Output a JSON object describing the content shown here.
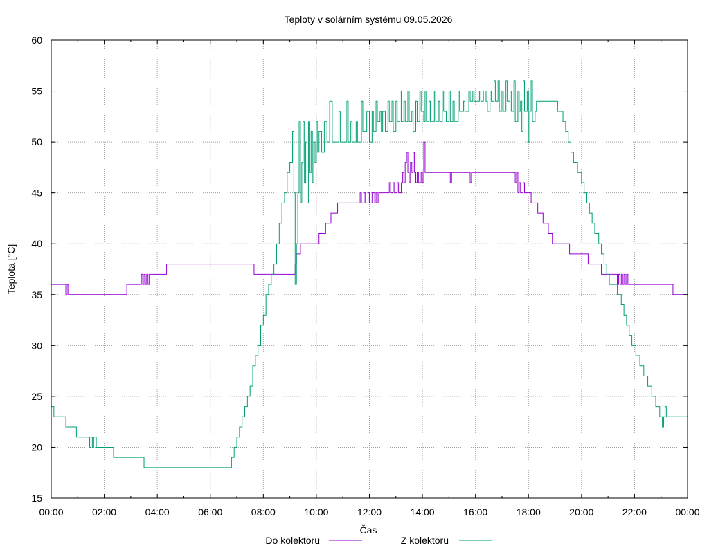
{
  "chart_data": {
    "type": "line",
    "title": "Teploty v solárním systému 09.05.2026",
    "xlabel": "Čas",
    "ylabel": "Teplota [°C]",
    "xlim_hours": [
      0,
      24
    ],
    "ylim": [
      15,
      60
    ],
    "grid": true,
    "legend_position": "bottom-center",
    "x_tick_labels": [
      "00:00",
      "02:00",
      "04:00",
      "06:00",
      "08:00",
      "10:00",
      "12:00",
      "14:00",
      "16:00",
      "18:00",
      "20:00",
      "22:00",
      "00:00"
    ],
    "y_ticks": [
      15,
      20,
      25,
      30,
      35,
      40,
      45,
      50,
      55,
      60
    ],
    "series": [
      {
        "name": "Do kolektoru",
        "color": "#9400d3",
        "points": [
          [
            0.0,
            36
          ],
          [
            0.5,
            36
          ],
          [
            0.55,
            35
          ],
          [
            0.6,
            36
          ],
          [
            0.65,
            35
          ],
          [
            2.85,
            35
          ],
          [
            2.85,
            36
          ],
          [
            3.35,
            36
          ],
          [
            3.4,
            37
          ],
          [
            3.45,
            36
          ],
          [
            3.5,
            37
          ],
          [
            3.55,
            36
          ],
          [
            3.6,
            37
          ],
          [
            3.65,
            36
          ],
          [
            3.7,
            37
          ],
          [
            4.35,
            37
          ],
          [
            4.35,
            38
          ],
          [
            7.6,
            38
          ],
          [
            7.65,
            37
          ],
          [
            9.15,
            37
          ],
          [
            9.2,
            38
          ],
          [
            9.25,
            39
          ],
          [
            9.35,
            39
          ],
          [
            9.4,
            40
          ],
          [
            10.1,
            40
          ],
          [
            10.1,
            41
          ],
          [
            10.35,
            41
          ],
          [
            10.35,
            42
          ],
          [
            10.55,
            42
          ],
          [
            10.55,
            43
          ],
          [
            10.8,
            43
          ],
          [
            10.8,
            44
          ],
          [
            11.6,
            44
          ],
          [
            11.65,
            45
          ],
          [
            11.7,
            44
          ],
          [
            11.8,
            45
          ],
          [
            11.85,
            44
          ],
          [
            11.95,
            45
          ],
          [
            12.0,
            44
          ],
          [
            12.1,
            45
          ],
          [
            12.2,
            44
          ],
          [
            12.25,
            45
          ],
          [
            12.3,
            44
          ],
          [
            12.35,
            45
          ],
          [
            12.7,
            45
          ],
          [
            12.75,
            46
          ],
          [
            12.8,
            45
          ],
          [
            12.9,
            46
          ],
          [
            12.95,
            45
          ],
          [
            13.05,
            46
          ],
          [
            13.1,
            45
          ],
          [
            13.2,
            46
          ],
          [
            13.25,
            47
          ],
          [
            13.3,
            46
          ],
          [
            13.35,
            48
          ],
          [
            13.4,
            49
          ],
          [
            13.45,
            47
          ],
          [
            13.5,
            46
          ],
          [
            13.55,
            48
          ],
          [
            13.6,
            47
          ],
          [
            13.65,
            49
          ],
          [
            13.7,
            47
          ],
          [
            13.75,
            46
          ],
          [
            13.8,
            47
          ],
          [
            13.85,
            46
          ],
          [
            13.95,
            47
          ],
          [
            14.0,
            46
          ],
          [
            14.05,
            50
          ],
          [
            14.1,
            47
          ],
          [
            15.0,
            47
          ],
          [
            15.05,
            46
          ],
          [
            15.1,
            47
          ],
          [
            15.75,
            47
          ],
          [
            15.8,
            46
          ],
          [
            15.85,
            47
          ],
          [
            17.45,
            47
          ],
          [
            17.5,
            46
          ],
          [
            17.55,
            47
          ],
          [
            17.6,
            45
          ],
          [
            17.65,
            46
          ],
          [
            17.7,
            45
          ],
          [
            17.8,
            46
          ],
          [
            17.85,
            45
          ],
          [
            18.05,
            45
          ],
          [
            18.1,
            44
          ],
          [
            18.3,
            44
          ],
          [
            18.35,
            43
          ],
          [
            18.5,
            43
          ],
          [
            18.55,
            42
          ],
          [
            18.7,
            42
          ],
          [
            18.75,
            41
          ],
          [
            18.85,
            41
          ],
          [
            18.9,
            40
          ],
          [
            19.5,
            40
          ],
          [
            19.55,
            39
          ],
          [
            20.2,
            39
          ],
          [
            20.25,
            38
          ],
          [
            20.7,
            38
          ],
          [
            20.75,
            37
          ],
          [
            21.3,
            37
          ],
          [
            21.35,
            36
          ],
          [
            21.4,
            37
          ],
          [
            21.45,
            36
          ],
          [
            21.5,
            37
          ],
          [
            21.55,
            36
          ],
          [
            21.6,
            37
          ],
          [
            21.65,
            36
          ],
          [
            21.7,
            37
          ],
          [
            21.75,
            36
          ],
          [
            23.4,
            36
          ],
          [
            23.45,
            35
          ],
          [
            24.0,
            35
          ]
        ]
      },
      {
        "name": "Z kolektoru",
        "color": "#009e73",
        "points": [
          [
            0.0,
            24
          ],
          [
            0.1,
            23
          ],
          [
            0.5,
            23
          ],
          [
            0.55,
            22
          ],
          [
            0.9,
            22
          ],
          [
            0.95,
            21
          ],
          [
            1.4,
            21
          ],
          [
            1.45,
            20
          ],
          [
            1.5,
            21
          ],
          [
            1.55,
            20
          ],
          [
            1.6,
            21
          ],
          [
            1.7,
            20
          ],
          [
            2.35,
            20
          ],
          [
            2.35,
            19
          ],
          [
            3.45,
            19
          ],
          [
            3.5,
            18
          ],
          [
            6.75,
            18
          ],
          [
            6.8,
            19
          ],
          [
            6.9,
            20
          ],
          [
            7.0,
            21
          ],
          [
            7.1,
            22
          ],
          [
            7.2,
            23
          ],
          [
            7.3,
            24
          ],
          [
            7.4,
            25
          ],
          [
            7.5,
            26
          ],
          [
            7.6,
            28
          ],
          [
            7.7,
            29
          ],
          [
            7.8,
            30
          ],
          [
            7.9,
            32
          ],
          [
            8.0,
            33
          ],
          [
            8.1,
            35
          ],
          [
            8.2,
            36
          ],
          [
            8.3,
            37
          ],
          [
            8.4,
            38
          ],
          [
            8.5,
            40
          ],
          [
            8.6,
            42
          ],
          [
            8.7,
            44
          ],
          [
            8.8,
            45
          ],
          [
            8.9,
            47
          ],
          [
            9.0,
            48
          ],
          [
            9.1,
            51
          ],
          [
            9.15,
            45
          ],
          [
            9.2,
            36
          ],
          [
            9.25,
            40
          ],
          [
            9.3,
            45
          ],
          [
            9.35,
            52
          ],
          [
            9.4,
            44
          ],
          [
            9.45,
            48
          ],
          [
            9.5,
            52
          ],
          [
            9.55,
            46
          ],
          [
            9.6,
            50
          ],
          [
            9.65,
            44
          ],
          [
            9.7,
            52
          ],
          [
            9.75,
            47
          ],
          [
            9.8,
            51
          ],
          [
            9.85,
            46
          ],
          [
            9.9,
            50
          ],
          [
            9.95,
            48
          ],
          [
            10.0,
            52
          ],
          [
            10.05,
            49
          ],
          [
            10.1,
            51
          ],
          [
            10.2,
            49
          ],
          [
            10.3,
            52
          ],
          [
            10.4,
            50
          ],
          [
            10.5,
            54
          ],
          [
            10.6,
            50
          ],
          [
            10.8,
            50
          ],
          [
            10.85,
            53
          ],
          [
            10.9,
            50
          ],
          [
            11.1,
            50
          ],
          [
            11.15,
            54
          ],
          [
            11.2,
            50
          ],
          [
            11.3,
            52
          ],
          [
            11.35,
            50
          ],
          [
            11.5,
            52
          ],
          [
            11.55,
            50
          ],
          [
            11.7,
            54
          ],
          [
            11.75,
            51
          ],
          [
            11.9,
            53
          ],
          [
            12.0,
            50
          ],
          [
            12.1,
            53
          ],
          [
            12.15,
            51
          ],
          [
            12.25,
            54
          ],
          [
            12.3,
            52
          ],
          [
            12.4,
            53
          ],
          [
            12.45,
            51
          ],
          [
            12.5,
            53
          ],
          [
            12.6,
            51
          ],
          [
            12.7,
            54
          ],
          [
            12.75,
            52
          ],
          [
            12.85,
            54
          ],
          [
            12.9,
            51
          ],
          [
            13.0,
            54
          ],
          [
            13.05,
            52
          ],
          [
            13.15,
            55
          ],
          [
            13.2,
            52
          ],
          [
            13.3,
            54
          ],
          [
            13.35,
            52
          ],
          [
            13.45,
            55
          ],
          [
            13.5,
            52
          ],
          [
            13.6,
            53
          ],
          [
            13.65,
            51
          ],
          [
            13.75,
            54
          ],
          [
            13.8,
            52
          ],
          [
            13.9,
            55
          ],
          [
            13.95,
            53
          ],
          [
            14.05,
            52
          ],
          [
            14.1,
            55
          ],
          [
            14.15,
            52
          ],
          [
            14.25,
            54
          ],
          [
            14.3,
            52
          ],
          [
            14.45,
            55
          ],
          [
            14.5,
            52
          ],
          [
            14.6,
            54
          ],
          [
            14.65,
            52
          ],
          [
            14.75,
            55
          ],
          [
            14.8,
            53
          ],
          [
            14.9,
            52
          ],
          [
            15.0,
            55
          ],
          [
            15.05,
            52
          ],
          [
            15.15,
            54
          ],
          [
            15.2,
            52
          ],
          [
            15.35,
            55
          ],
          [
            15.4,
            53
          ],
          [
            15.55,
            54
          ],
          [
            15.6,
            53
          ],
          [
            15.75,
            55
          ],
          [
            15.8,
            54
          ],
          [
            15.9,
            55
          ],
          [
            15.95,
            54
          ],
          [
            16.1,
            54
          ],
          [
            16.15,
            55
          ],
          [
            16.2,
            54
          ],
          [
            16.3,
            55
          ],
          [
            16.4,
            54
          ],
          [
            16.45,
            53
          ],
          [
            16.55,
            55
          ],
          [
            16.6,
            54
          ],
          [
            16.7,
            56
          ],
          [
            16.75,
            54
          ],
          [
            16.85,
            56
          ],
          [
            16.9,
            53
          ],
          [
            17.0,
            55
          ],
          [
            17.05,
            53
          ],
          [
            17.15,
            56
          ],
          [
            17.2,
            54
          ],
          [
            17.3,
            55
          ],
          [
            17.35,
            53
          ],
          [
            17.45,
            56
          ],
          [
            17.5,
            52
          ],
          [
            17.6,
            55
          ],
          [
            17.65,
            53
          ],
          [
            17.7,
            54
          ],
          [
            17.75,
            51
          ],
          [
            17.8,
            56
          ],
          [
            17.85,
            53
          ],
          [
            17.95,
            55
          ],
          [
            18.0,
            50
          ],
          [
            18.05,
            53
          ],
          [
            18.1,
            56
          ],
          [
            18.15,
            52
          ],
          [
            18.25,
            53
          ],
          [
            18.3,
            54
          ],
          [
            19.05,
            54
          ],
          [
            19.1,
            53
          ],
          [
            19.3,
            52
          ],
          [
            19.4,
            51
          ],
          [
            19.5,
            50
          ],
          [
            19.6,
            49
          ],
          [
            19.7,
            48
          ],
          [
            19.85,
            47
          ],
          [
            20.0,
            46
          ],
          [
            20.1,
            45
          ],
          [
            20.2,
            44
          ],
          [
            20.3,
            43
          ],
          [
            20.4,
            42
          ],
          [
            20.5,
            41
          ],
          [
            20.65,
            40
          ],
          [
            20.75,
            39
          ],
          [
            20.85,
            38
          ],
          [
            20.95,
            37
          ],
          [
            21.05,
            36
          ],
          [
            21.2,
            36
          ],
          [
            21.35,
            35
          ],
          [
            21.5,
            34
          ],
          [
            21.6,
            33
          ],
          [
            21.7,
            32
          ],
          [
            21.8,
            31
          ],
          [
            21.9,
            30
          ],
          [
            22.05,
            29
          ],
          [
            22.2,
            28
          ],
          [
            22.35,
            27
          ],
          [
            22.5,
            26
          ],
          [
            22.65,
            25
          ],
          [
            22.8,
            24
          ],
          [
            22.95,
            23
          ],
          [
            23.05,
            22
          ],
          [
            23.1,
            23
          ],
          [
            23.15,
            24
          ],
          [
            23.2,
            23
          ],
          [
            24.0,
            23
          ]
        ]
      }
    ]
  }
}
